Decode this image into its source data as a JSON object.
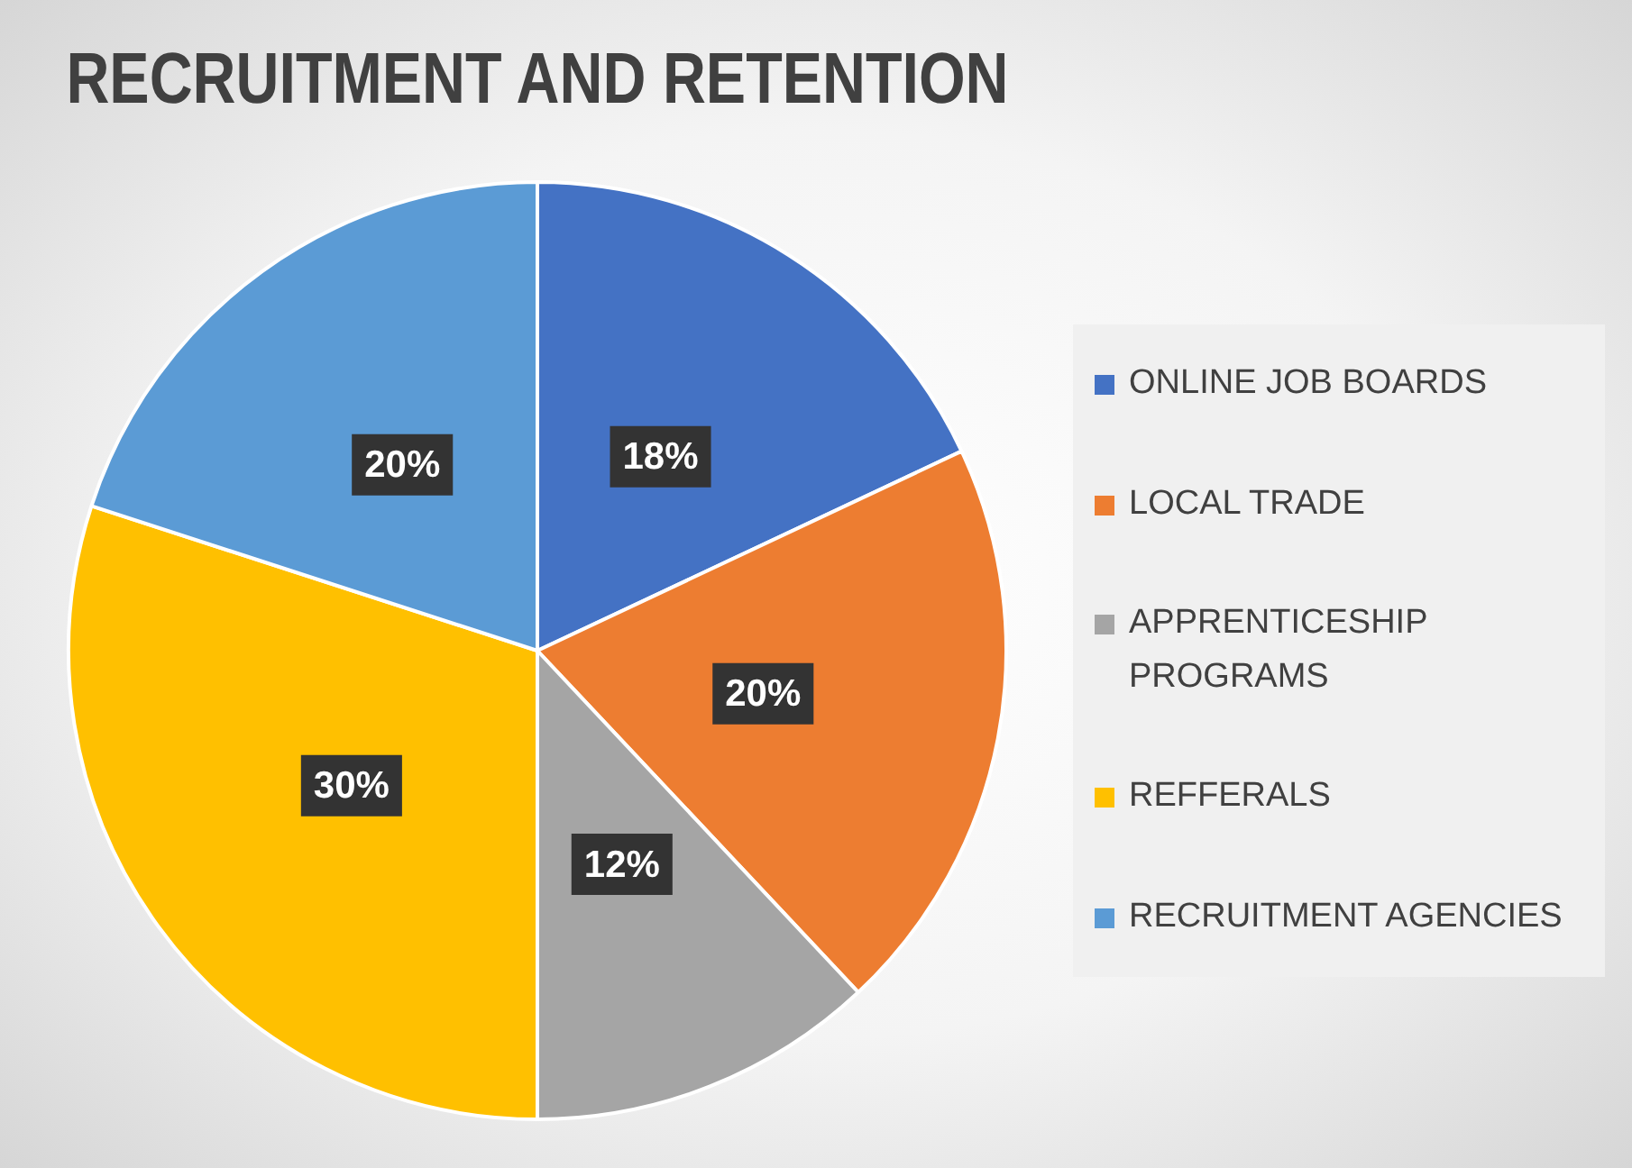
{
  "chart_data": {
    "type": "pie",
    "title": "RECRUITMENT AND RETENTION",
    "categories": [
      "ONLINE JOB BOARDS",
      "LOCAL TRADE",
      "APPRENTICESHIP PROGRAMS",
      "REFFERALS",
      "RECRUITMENT AGENCIES"
    ],
    "values": [
      18,
      20,
      12,
      30,
      20
    ],
    "value_labels": [
      "18%",
      "20%",
      "12%",
      "30%",
      "20%"
    ],
    "colors": [
      "#4472c4",
      "#ed7d31",
      "#a5a5a5",
      "#ffc000",
      "#5b9bd5"
    ],
    "legend": "right"
  }
}
